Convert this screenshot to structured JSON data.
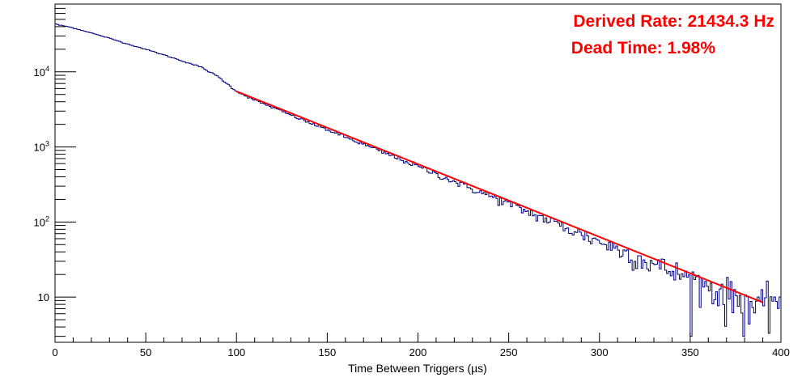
{
  "chart_data": {
    "type": "histogram",
    "xlabel": "Time Between Triggers (µs)",
    "ylabel": "",
    "xlim": [
      0,
      400
    ],
    "ylim": [
      2.5,
      80000
    ],
    "yscale": "log",
    "grid": false,
    "legend": "none",
    "x_ticks": [
      0,
      50,
      100,
      150,
      200,
      250,
      300,
      350,
      400
    ],
    "x_tick_labels": [
      "0",
      "50",
      "100",
      "150",
      "200",
      "250",
      "300",
      "350",
      "400"
    ],
    "y_ticks": [
      10,
      100,
      1000,
      10000
    ],
    "y_tick_labels": [
      {
        "base": "10",
        "exp": ""
      },
      {
        "base": "10",
        "exp": "2"
      },
      {
        "base": "10",
        "exp": "3"
      },
      {
        "base": "10",
        "exp": "4"
      }
    ],
    "annotations": [
      {
        "text": "Derived Rate: 21434.3 Hz",
        "color": "#ff0000",
        "position": "top-right"
      },
      {
        "text": "Dead Time: 1.98%",
        "color": "#ff0000",
        "position": "top-right"
      }
    ],
    "series": [
      {
        "kind": "histogram",
        "color": "#000080",
        "bin_width": 1,
        "x": [
          0,
          2,
          5,
          10,
          20,
          30,
          40,
          50,
          60,
          70,
          80,
          90,
          100,
          110,
          120,
          130,
          140,
          150,
          160,
          170,
          180,
          190,
          200,
          210,
          220,
          230,
          240,
          250,
          260,
          270,
          280,
          290,
          300,
          310,
          320,
          330,
          340,
          350,
          360,
          370,
          380,
          390,
          395,
          400
        ],
        "y": [
          44000,
          42000,
          41000,
          38500,
          33000,
          28000,
          23500,
          20000,
          16800,
          14000,
          11700,
          8600,
          5500,
          4200,
          3350,
          2650,
          2100,
          1700,
          1350,
          1080,
          860,
          690,
          550,
          435,
          345,
          275,
          220,
          175,
          138,
          110,
          87,
          69,
          55,
          43.5,
          34.5,
          27.5,
          22,
          17.5,
          14,
          11,
          9,
          6.5,
          11,
          8
        ]
      },
      {
        "kind": "fit",
        "color": "#ff0000",
        "x_range": [
          100,
          390
        ],
        "y_start": 5500,
        "y_end": 8.5
      }
    ]
  }
}
